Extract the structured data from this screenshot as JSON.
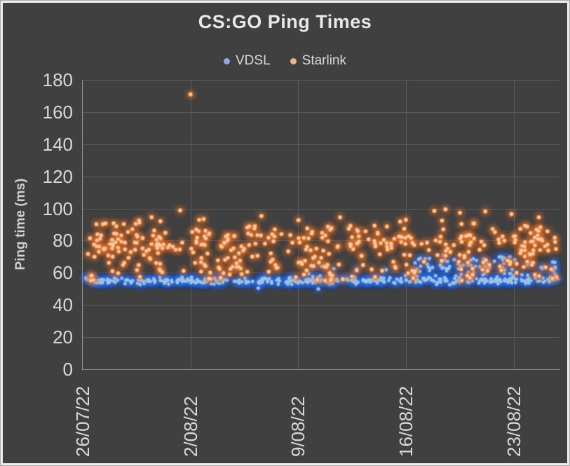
{
  "chart_data": {
    "type": "scatter",
    "title": "CS:GO Ping Times",
    "ylabel": "Ping time (ms)",
    "ylim": [
      0,
      180
    ],
    "yticks": [
      180,
      160,
      140,
      120,
      100,
      80,
      60,
      40,
      20,
      0
    ],
    "x_axis_days": [
      0,
      30.96
    ],
    "xticks": [
      {
        "label": "26/07/22",
        "day": 0
      },
      {
        "label": "2/08/22",
        "day": 7
      },
      {
        "label": "9/08/22",
        "day": 14
      },
      {
        "label": "16/08/22",
        "day": 21
      },
      {
        "label": "23/08/22",
        "day": 28
      }
    ],
    "grid": true,
    "legend_position": "top",
    "background_color": "#404040",
    "seed": 42,
    "series": [
      {
        "name": "VDSL",
        "legend_color": "#8FAADC",
        "center_color": "#9DC3E6",
        "glow_color": "#2F6FE0",
        "clusters": [
          {
            "n": 400,
            "x": [
              0.15,
              30.85
            ],
            "y": [
              52.5,
              57.5
            ],
            "bias": "center"
          },
          {
            "n": 55,
            "x": [
              21.3,
              26.4
            ],
            "y": [
              56,
              72
            ],
            "bias": "center"
          },
          {
            "n": 35,
            "x": [
              26.6,
              30.85
            ],
            "y": [
              55,
              70
            ],
            "bias": "uniform"
          },
          {
            "n": 10,
            "x": [
              14.0,
              21.2
            ],
            "y": [
              56,
              65
            ],
            "bias": "uniform"
          }
        ],
        "points": [
          [
            11.4,
            50.5
          ],
          [
            15.3,
            50.0
          ]
        ]
      },
      {
        "name": "Starlink",
        "legend_color": "#F4B183",
        "center_color": "#F8CBAD",
        "glow_color": "#ED7D31",
        "clusters": [
          {
            "n": 320,
            "x": [
              0.25,
              30.85
            ],
            "y": [
              62,
              96
            ],
            "bias": "center"
          },
          {
            "n": 95,
            "x": [
              0.25,
              30.85
            ],
            "y": [
              55,
              67
            ],
            "bias": "uniform"
          },
          {
            "n": 10,
            "x": [
              0.5,
              30.5
            ],
            "y": [
              94,
              100
            ],
            "bias": "uniform"
          }
        ],
        "points": [
          [
            7.0,
            171
          ]
        ]
      }
    ]
  }
}
